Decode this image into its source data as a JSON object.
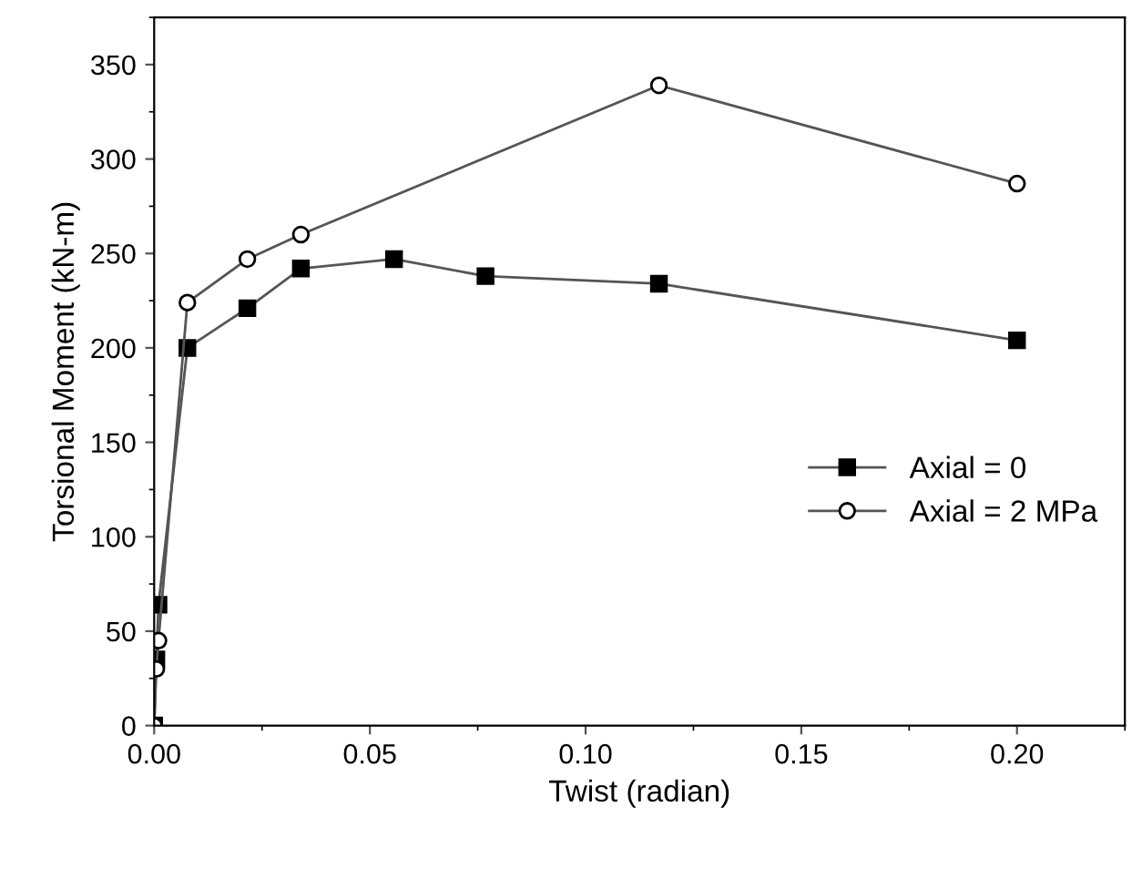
{
  "chart_data": {
    "type": "line",
    "xlabel": "Twist (radian)",
    "ylabel": "Torsional Moment (kN-m)",
    "xlim": [
      0,
      0.225
    ],
    "xticks": [
      {
        "value": 0,
        "label": "0.00"
      },
      {
        "value": 0.05,
        "label": "0.05"
      },
      {
        "value": 0.1,
        "label": "0.10"
      },
      {
        "value": 0.15,
        "label": "0.15"
      },
      {
        "value": 0.2,
        "label": "0.20"
      }
    ],
    "ylim": [
      0,
      375
    ],
    "yticks": [
      0,
      50,
      100,
      150,
      200,
      250,
      300,
      350
    ],
    "grid": false,
    "legend": "right",
    "line_style": "solid",
    "series": [
      {
        "name": "Axial = 0",
        "color": "#000000",
        "marker": "square",
        "x": [
          0,
          0.0005,
          0.001,
          0.0077,
          0.0216,
          0.034,
          0.0556,
          0.0768,
          0.117,
          0.2
        ],
        "values": [
          0,
          35,
          64,
          200,
          221,
          242,
          247,
          238,
          234,
          204
        ]
      },
      {
        "name": "Axial = 2 MPa",
        "color": "#ffffff",
        "marker": "circle",
        "x": [
          0,
          0.0005,
          0.001,
          0.0077,
          0.0216,
          0.034,
          0.117,
          0.2
        ],
        "values": [
          0,
          30,
          45,
          224,
          247,
          260,
          339,
          287
        ]
      }
    ]
  }
}
